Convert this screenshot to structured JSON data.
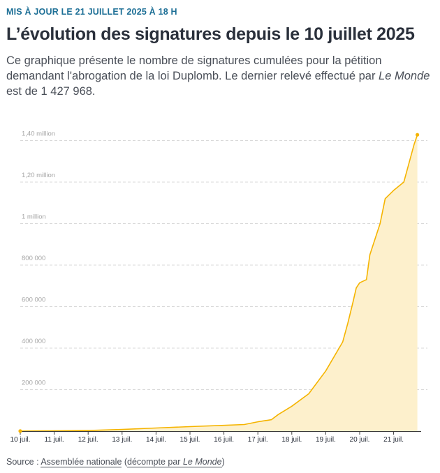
{
  "header": {
    "kicker": "MIS À JOUR LE 21 JUILLET 2025 À 18 H",
    "title": "L’évolution des signatures depuis le 10 juillet 2025",
    "subtitle_before": "Ce graphique présente le nombre de signatures cumulées pour la pétition demandant l'abrogation de la loi Duplomb. Le dernier relevé effectué par ",
    "subtitle_em": "Le Monde",
    "subtitle_after": " est de 1 427 968."
  },
  "footer": {
    "prefix": "Source : ",
    "source_link": "Assemblée nationale",
    "paren_open": " (",
    "count_link_text": "décompte par ",
    "count_link_em": "Le Monde",
    "paren_close": ")"
  },
  "colors": {
    "line": "#f5b400",
    "fill": "#fdf0cc",
    "grid": "#d8d8d8",
    "axis": "#3a3a3a",
    "tick_label": "#2a303b",
    "y_label": "#a6a6a6"
  },
  "chart_data": {
    "type": "area",
    "title": "L’évolution des signatures depuis le 10 juillet 2025",
    "xlabel": "",
    "ylabel": "",
    "x_unit": "days since 10 juillet 2025",
    "xlim": [
      0,
      11.2
    ],
    "ylim": [
      0,
      1450000
    ],
    "x_ticks": [
      0,
      1,
      2,
      3,
      4,
      5,
      6,
      7,
      8,
      9,
      10,
      11
    ],
    "x_tick_labels": [
      "10 juil.",
      "11 juil.",
      "12 juil.",
      "13 juil.",
      "14 juil.",
      "15 juil.",
      "16 juil.",
      "17 juil.",
      "18 juil.",
      "19 juil.",
      "20 juil.",
      "21 juil."
    ],
    "y_ticks": [
      200000,
      400000,
      600000,
      800000,
      1000000,
      1200000,
      1400000
    ],
    "y_tick_labels": [
      "200 000",
      "400 000",
      "600 000",
      "800 000",
      "1 million",
      "1,20 million",
      "1,40 million"
    ],
    "grid": true,
    "series": [
      {
        "name": "Signatures cumulées",
        "x": [
          0,
          0.5,
          1,
          2,
          3,
          4,
          5,
          6,
          6.6,
          7,
          7.4,
          7.6,
          8,
          8.5,
          9,
          9.5,
          9.65,
          9.8,
          9.9,
          10,
          10.2,
          10.3,
          10.6,
          10.75,
          11,
          11.3,
          11.6,
          11.7
        ],
        "y": [
          500,
          1000,
          1500,
          3000,
          8000,
          15000,
          22000,
          28000,
          32000,
          45000,
          55000,
          80000,
          120000,
          180000,
          290000,
          430000,
          520000,
          620000,
          690000,
          715000,
          730000,
          850000,
          1000000,
          1120000,
          1160000,
          1200000,
          1380000,
          1427968
        ]
      }
    ],
    "last_value": 1427968
  }
}
